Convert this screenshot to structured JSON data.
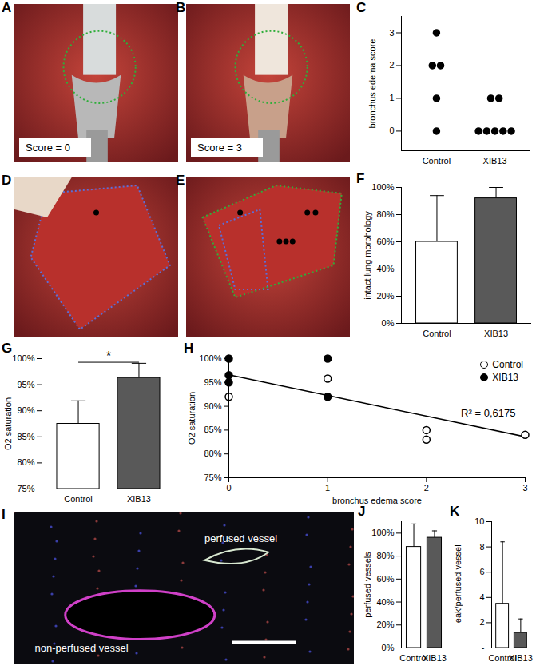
{
  "images": [
    {
      "panel": "A",
      "label": "Score = 0"
    },
    {
      "panel": "B",
      "label": "Score = 3"
    },
    {
      "panel": "D"
    },
    {
      "panel": "E"
    },
    {
      "panel": "I",
      "labels": [
        "perfused vessel",
        "non-perfused vessel"
      ]
    }
  ],
  "chart_data": [
    {
      "panel": "C",
      "type": "strip",
      "ylabel": "bronchus edema score",
      "categories": [
        "Control",
        "XIB13"
      ],
      "values": [
        [
          3,
          2,
          2,
          1,
          0
        ],
        [
          1,
          1,
          0,
          0,
          0,
          0,
          0
        ]
      ],
      "color": "#000000",
      "ylim": [
        -0.6,
        3.5
      ],
      "yticks": [
        0,
        1,
        2,
        3
      ]
    },
    {
      "panel": "F",
      "type": "bar",
      "ylabel": "intact lung morphology",
      "categories": [
        "Control",
        "XIB13"
      ],
      "values": [
        60,
        92
      ],
      "errors": [
        34,
        8
      ],
      "colors": [
        "#ffffff",
        "#595959"
      ],
      "ylim": [
        0,
        100
      ],
      "yticks": [
        {
          "value": 0,
          "label": "0%"
        },
        {
          "value": 20,
          "label": "20%"
        },
        {
          "value": 40,
          "label": "40%"
        },
        {
          "value": 60,
          "label": "60%"
        },
        {
          "value": 80,
          "label": "80%"
        },
        {
          "value": 100,
          "label": "100%"
        }
      ]
    },
    {
      "panel": "G",
      "type": "bar",
      "ylabel": "O2 saturation",
      "categories": [
        "Control",
        "XIB13"
      ],
      "values": [
        87.5,
        96.3
      ],
      "errors": [
        4.4,
        2.8
      ],
      "colors": [
        "#ffffff",
        "#595959"
      ],
      "ylim": [
        75,
        100
      ],
      "yticks": [
        {
          "value": 75,
          "label": "75%"
        },
        {
          "value": 80,
          "label": "80%"
        },
        {
          "value": 85,
          "label": "85%"
        },
        {
          "value": 90,
          "label": "90%"
        },
        {
          "value": 95,
          "label": "95%"
        },
        {
          "value": 100,
          "label": "100%"
        }
      ],
      "annotations": [
        {
          "text": "*",
          "from": "Control",
          "to": "XIB13",
          "y": 99.3
        }
      ]
    },
    {
      "panel": "H",
      "type": "scatter",
      "xlabel": "bronchus edema score",
      "ylabel": "O2 saturation",
      "series": [
        {
          "name": "Control",
          "color": "#000000",
          "marker": "circle-open",
          "x": [
            0,
            1,
            2,
            2,
            3
          ],
          "values": [
            92,
            95.8,
            85,
            83,
            84
          ]
        },
        {
          "name": "XIB13",
          "color": "#000000",
          "marker": "circle",
          "x": [
            0,
            0,
            0,
            1,
            1
          ],
          "values": [
            100,
            96.5,
            95,
            100,
            92
          ]
        }
      ],
      "trendline": {
        "x": [
          0,
          3
        ],
        "values": [
          96.6,
          83.6
        ]
      },
      "annotations": [
        {
          "text": "R² = 0,6175",
          "x": 2.35,
          "y": 88.5
        }
      ],
      "legend": "top-right",
      "xlim": [
        0,
        3
      ],
      "xticks": [
        0,
        1,
        2,
        3
      ],
      "ylim": [
        75,
        100
      ],
      "yticks": [
        {
          "value": 75,
          "label": "75%"
        },
        {
          "value": 80,
          "label": "80%"
        },
        {
          "value": 85,
          "label": "85%"
        },
        {
          "value": 90,
          "label": "90%"
        },
        {
          "value": 95,
          "label": "95%"
        },
        {
          "value": 100,
          "label": "100%"
        }
      ]
    },
    {
      "panel": "J",
      "type": "bar",
      "ylabel": "perfused vessels",
      "categories": [
        "Control",
        "XIB13"
      ],
      "values": [
        88,
        96
      ],
      "errors": [
        20,
        6
      ],
      "colors": [
        "#ffffff",
        "#595959"
      ],
      "ylim": [
        0,
        110
      ],
      "yticks": [
        {
          "value": 0,
          "label": "0%"
        },
        {
          "value": 20,
          "label": "20%"
        },
        {
          "value": 40,
          "label": "40%"
        },
        {
          "value": 60,
          "label": "60%"
        },
        {
          "value": 80,
          "label": "80%"
        },
        {
          "value": 100,
          "label": "100%"
        }
      ]
    },
    {
      "panel": "K",
      "type": "bar",
      "ylabel": "leak/perfused vessel",
      "categories": [
        "Control",
        "XIB13"
      ],
      "values": [
        3.5,
        1.2
      ],
      "errors": [
        4.9,
        1.1
      ],
      "colors": [
        "#ffffff",
        "#595959"
      ],
      "ylim": [
        0,
        10
      ],
      "yticks": [
        {
          "value": 0,
          "label": "-"
        },
        2,
        4,
        6,
        8,
        10
      ]
    }
  ]
}
